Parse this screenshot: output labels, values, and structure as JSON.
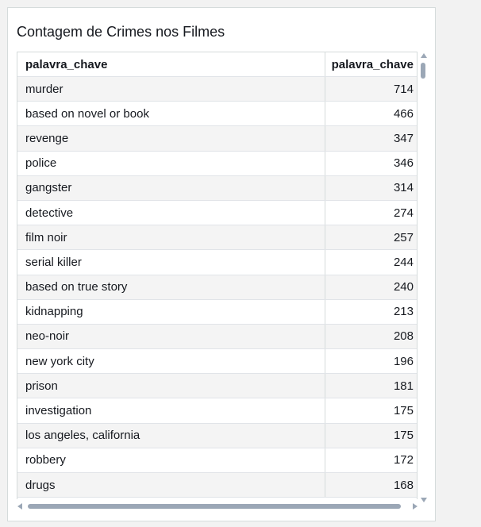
{
  "panel": {
    "title": "Contagem de Crimes nos Filmes"
  },
  "table": {
    "columns": [
      "palavra_chave",
      "palavra_chave"
    ],
    "rows": [
      {
        "keyword": "murder",
        "count": "714"
      },
      {
        "keyword": "based on novel or book",
        "count": "466"
      },
      {
        "keyword": "revenge",
        "count": "347"
      },
      {
        "keyword": "police",
        "count": "346"
      },
      {
        "keyword": "gangster",
        "count": "314"
      },
      {
        "keyword": "detective",
        "count": "274"
      },
      {
        "keyword": "film noir",
        "count": "257"
      },
      {
        "keyword": "serial killer",
        "count": "244"
      },
      {
        "keyword": "based on true story",
        "count": "240"
      },
      {
        "keyword": "kidnapping",
        "count": "213"
      },
      {
        "keyword": "neo-noir",
        "count": "208"
      },
      {
        "keyword": "new york city",
        "count": "196"
      },
      {
        "keyword": "prison",
        "count": "181"
      },
      {
        "keyword": "investigation",
        "count": "175"
      },
      {
        "keyword": "los angeles, california",
        "count": "175"
      },
      {
        "keyword": "robbery",
        "count": "172"
      },
      {
        "keyword": "drugs",
        "count": "168"
      }
    ]
  },
  "colors": {
    "row_alt": "#f4f4f4",
    "border": "#d5dbdb",
    "scrollbar": "#9ba7b6"
  }
}
